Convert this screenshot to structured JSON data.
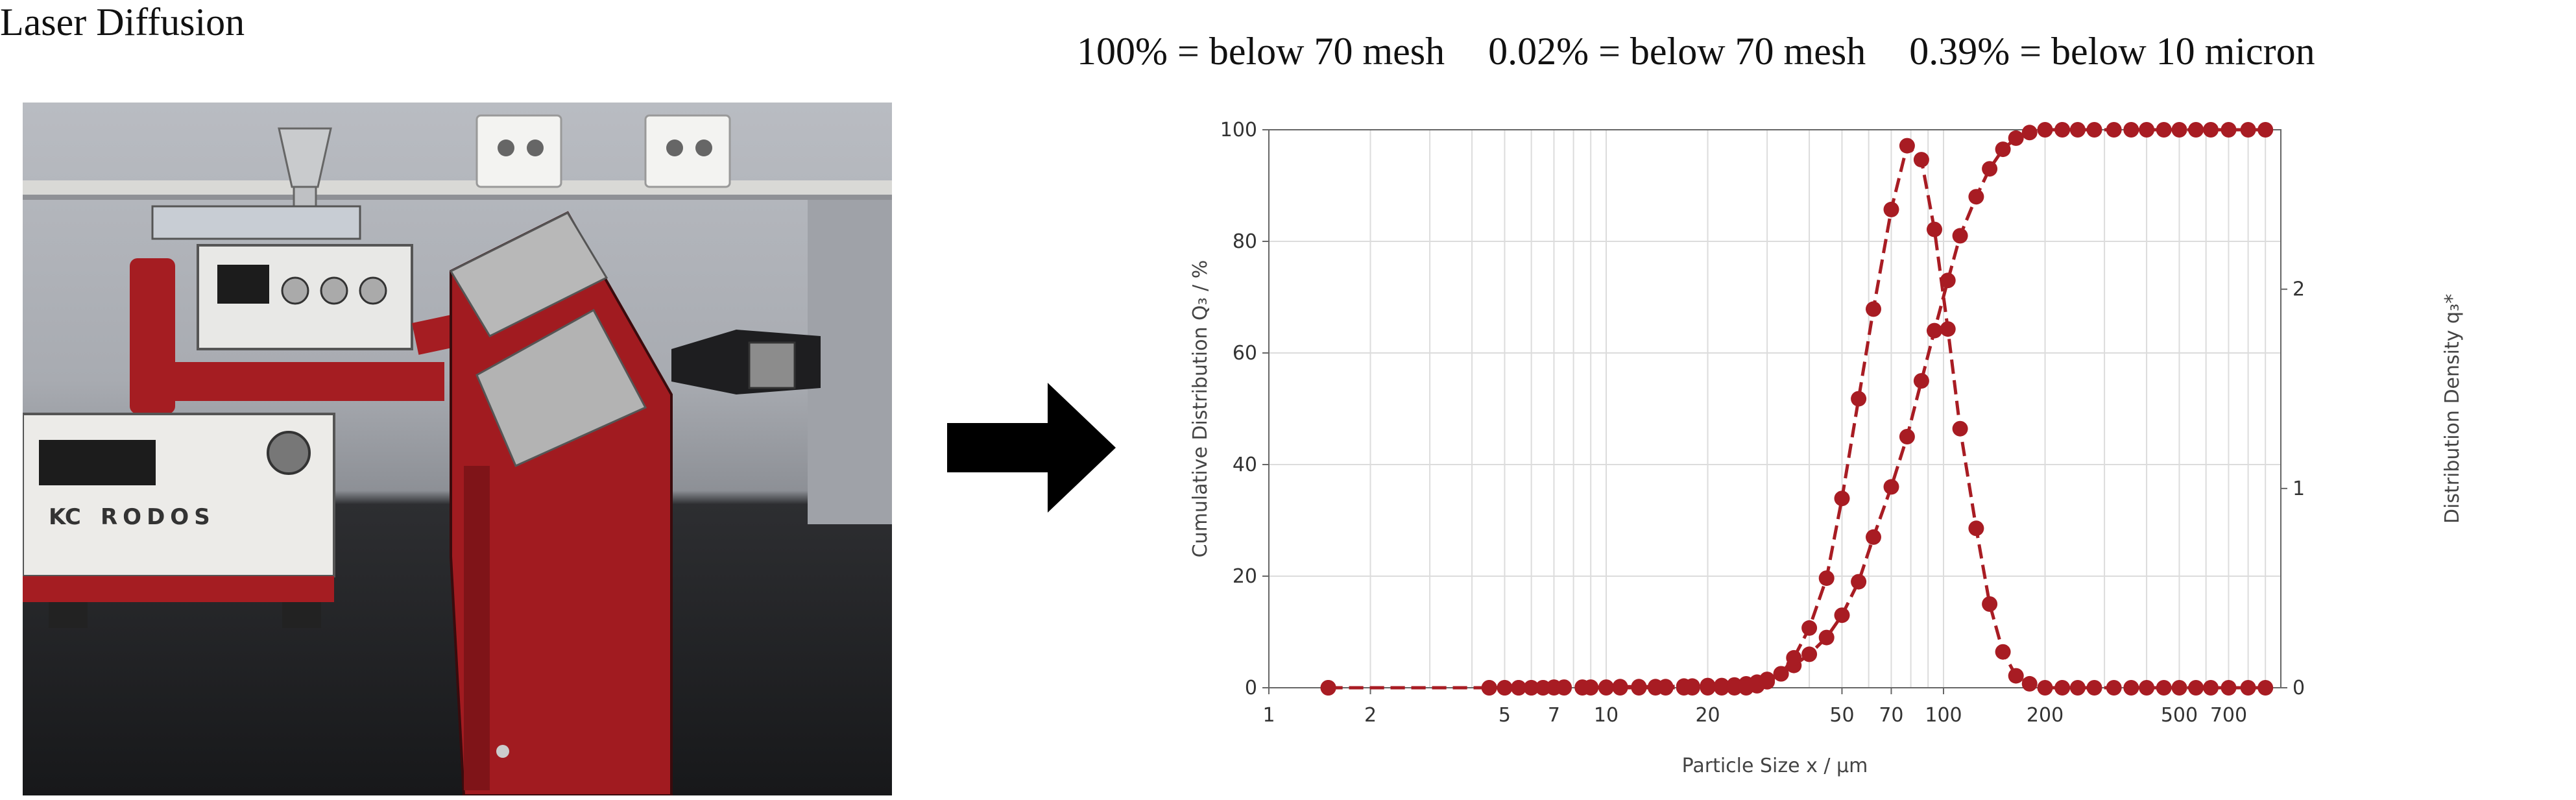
{
  "left_panel": {
    "title": "Laser Diffusion",
    "device_label": "RODOS",
    "device_badge": "KC"
  },
  "right_panel": {
    "summary": [
      "100% = below 70 mesh",
      "0.02% = below 70 mesh",
      "0.39% = below 10 micron"
    ]
  },
  "arrow": {
    "icon": "right-arrow-icon",
    "color": "#000000"
  },
  "chart_data": {
    "type": "line",
    "xlabel": "Particle Size x / µm",
    "ylabel_left": "Cumulative Distribution Q₃ / %",
    "ylabel_right": "Distribution Density q₃*",
    "x_scale": "log",
    "xlim": [
      1,
      1000
    ],
    "ylim_left": [
      0,
      100
    ],
    "ylim_right": [
      0,
      2.8
    ],
    "x_ticks": [
      1,
      2,
      5,
      7,
      10,
      20,
      50,
      70,
      100,
      200,
      500,
      700
    ],
    "x_tick_labels": [
      "1",
      "2",
      "5",
      "7",
      "10",
      "20",
      "50",
      "70",
      "100",
      "200",
      "500",
      "700"
    ],
    "y_ticks_left": [
      0,
      20,
      40,
      60,
      80,
      100
    ],
    "y_ticks_right": [
      0,
      1,
      2
    ],
    "grid": true,
    "color": "#a81c23",
    "series": [
      {
        "axis": "left",
        "x": [
          1.5,
          4.5,
          5.0,
          5.5,
          6.0,
          6.5,
          7.0,
          7.5,
          8.5,
          9.0,
          10,
          11,
          12.5,
          14,
          15,
          17,
          18,
          20,
          22,
          24,
          26,
          28,
          30,
          33,
          36,
          40,
          45,
          50,
          56,
          62,
          70,
          78,
          86,
          94,
          103,
          112,
          125,
          137,
          150,
          164,
          180,
          200,
          225,
          250,
          280,
          320,
          360,
          400,
          450,
          500,
          560,
          620,
          700,
          800,
          900
        ],
        "y": [
          0,
          0,
          0,
          0,
          0,
          0,
          0.1,
          0.1,
          0.1,
          0.1,
          0.1,
          0.2,
          0.2,
          0.2,
          0.2,
          0.3,
          0.3,
          0.4,
          0.4,
          0.5,
          0.7,
          1.0,
          1.5,
          2.5,
          4,
          6,
          9,
          13,
          19,
          27,
          36,
          45,
          55,
          64,
          73,
          81,
          88,
          93,
          96.5,
          98.5,
          99.5,
          100,
          100,
          100,
          100,
          100,
          100,
          100,
          100,
          100,
          100,
          100,
          100,
          100,
          100
        ]
      },
      {
        "axis": "right",
        "x": [
          1.5,
          4.5,
          5.0,
          5.5,
          6.0,
          6.5,
          7.0,
          7.5,
          8.5,
          9.0,
          10,
          11,
          12.5,
          14,
          15,
          17,
          18,
          20,
          22,
          24,
          26,
          28,
          30,
          33,
          36,
          40,
          45,
          50,
          56,
          62,
          70,
          78,
          86,
          94,
          103,
          112,
          125,
          137,
          150,
          164,
          180,
          200,
          225,
          250,
          280,
          320,
          360,
          400,
          450,
          500,
          560,
          620,
          700,
          800,
          900
        ],
        "y": [
          0,
          0,
          0,
          0,
          0,
          0,
          0,
          0,
          0,
          0,
          0,
          0,
          0,
          0,
          0,
          0,
          0,
          0,
          0,
          0,
          0,
          0.01,
          0.03,
          0.07,
          0.15,
          0.3,
          0.55,
          0.95,
          1.45,
          1.9,
          2.4,
          2.72,
          2.65,
          2.3,
          1.8,
          1.3,
          0.8,
          0.42,
          0.18,
          0.06,
          0.02,
          0,
          0,
          0,
          0,
          0,
          0,
          0,
          0,
          0,
          0,
          0,
          0,
          0,
          0
        ]
      }
    ]
  }
}
